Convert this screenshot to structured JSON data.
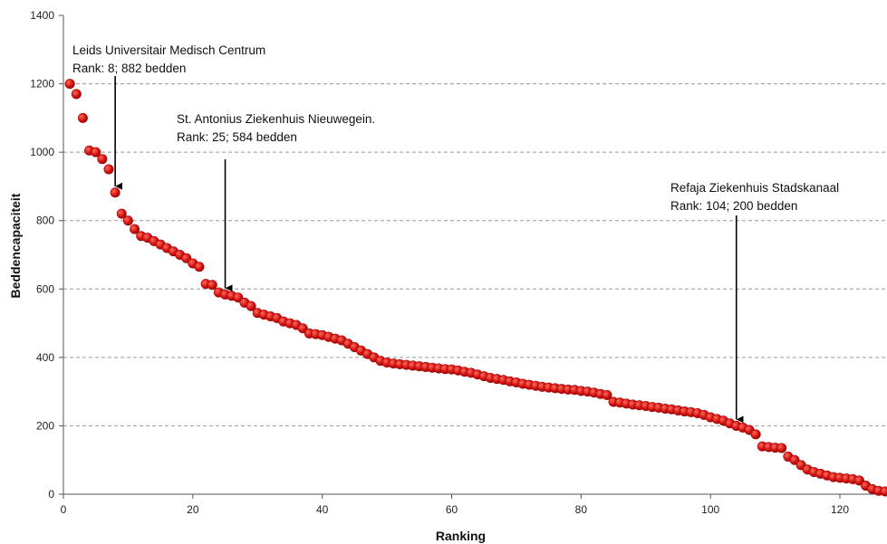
{
  "chart_data": {
    "type": "scatter",
    "xlabel": "Ranking",
    "ylabel": "Beddencapaciteit",
    "xlim": [
      0,
      127
    ],
    "ylim": [
      0,
      1400
    ],
    "x_ticks": [
      0,
      20,
      40,
      60,
      80,
      100,
      120
    ],
    "y_ticks": [
      0,
      200,
      400,
      600,
      800,
      1000,
      1200,
      1400
    ],
    "grid": "horizontal dashed",
    "marker_color": "#d41414",
    "series": [
      {
        "points": [
          [
            1,
            1200
          ],
          [
            2,
            1170
          ],
          [
            3,
            1100
          ],
          [
            4,
            1005
          ],
          [
            5,
            1000
          ],
          [
            6,
            980
          ],
          [
            7,
            950
          ],
          [
            8,
            882
          ],
          [
            9,
            820
          ],
          [
            10,
            800
          ],
          [
            11,
            775
          ],
          [
            12,
            755
          ],
          [
            13,
            750
          ],
          [
            14,
            740
          ],
          [
            15,
            730
          ],
          [
            16,
            720
          ],
          [
            17,
            710
          ],
          [
            18,
            700
          ],
          [
            19,
            690
          ],
          [
            20,
            675
          ],
          [
            21,
            665
          ],
          [
            22,
            615
          ],
          [
            23,
            612
          ],
          [
            24,
            590
          ],
          [
            25,
            584
          ],
          [
            26,
            580
          ],
          [
            27,
            575
          ],
          [
            28,
            560
          ],
          [
            29,
            550
          ],
          [
            30,
            530
          ],
          [
            31,
            525
          ],
          [
            32,
            520
          ],
          [
            33,
            515
          ],
          [
            34,
            505
          ],
          [
            35,
            500
          ],
          [
            36,
            495
          ],
          [
            37,
            485
          ],
          [
            38,
            470
          ],
          [
            39,
            468
          ],
          [
            40,
            465
          ],
          [
            41,
            460
          ],
          [
            42,
            455
          ],
          [
            43,
            450
          ],
          [
            44,
            440
          ],
          [
            45,
            430
          ],
          [
            46,
            420
          ],
          [
            47,
            410
          ],
          [
            48,
            400
          ],
          [
            49,
            390
          ],
          [
            50,
            385
          ],
          [
            51,
            382
          ],
          [
            52,
            380
          ],
          [
            53,
            378
          ],
          [
            54,
            376
          ],
          [
            55,
            374
          ],
          [
            56,
            372
          ],
          [
            57,
            370
          ],
          [
            58,
            368
          ],
          [
            59,
            366
          ],
          [
            60,
            365
          ],
          [
            61,
            362
          ],
          [
            62,
            358
          ],
          [
            63,
            355
          ],
          [
            64,
            350
          ],
          [
            65,
            345
          ],
          [
            66,
            340
          ],
          [
            67,
            337
          ],
          [
            68,
            334
          ],
          [
            69,
            330
          ],
          [
            70,
            327
          ],
          [
            71,
            323
          ],
          [
            72,
            320
          ],
          [
            73,
            317
          ],
          [
            74,
            314
          ],
          [
            75,
            312
          ],
          [
            76,
            310
          ],
          [
            77,
            308
          ],
          [
            78,
            306
          ],
          [
            79,
            305
          ],
          [
            80,
            302
          ],
          [
            81,
            300
          ],
          [
            82,
            297
          ],
          [
            83,
            293
          ],
          [
            84,
            290
          ],
          [
            85,
            270
          ],
          [
            86,
            268
          ],
          [
            87,
            265
          ],
          [
            88,
            262
          ],
          [
            89,
            260
          ],
          [
            90,
            258
          ],
          [
            91,
            255
          ],
          [
            92,
            253
          ],
          [
            93,
            250
          ],
          [
            94,
            248
          ],
          [
            95,
            245
          ],
          [
            96,
            242
          ],
          [
            97,
            240
          ],
          [
            98,
            237
          ],
          [
            99,
            232
          ],
          [
            100,
            225
          ],
          [
            101,
            220
          ],
          [
            102,
            215
          ],
          [
            103,
            207
          ],
          [
            104,
            200
          ],
          [
            105,
            195
          ],
          [
            106,
            188
          ],
          [
            107,
            175
          ],
          [
            108,
            140
          ],
          [
            109,
            138
          ],
          [
            110,
            136
          ],
          [
            111,
            135
          ],
          [
            112,
            110
          ],
          [
            113,
            100
          ],
          [
            114,
            85
          ],
          [
            115,
            72
          ],
          [
            116,
            65
          ],
          [
            117,
            60
          ],
          [
            118,
            55
          ],
          [
            119,
            50
          ],
          [
            120,
            48
          ],
          [
            121,
            46
          ],
          [
            122,
            44
          ],
          [
            123,
            40
          ],
          [
            124,
            25
          ],
          [
            125,
            15
          ],
          [
            126,
            10
          ],
          [
            127,
            8
          ]
        ]
      }
    ],
    "annotations": [
      {
        "lines": [
          "Leids Universitair Medisch Centrum",
          "Rank: 8; 882 bedden"
        ],
        "rank": 8,
        "value": 882
      },
      {
        "lines": [
          "St. Antonius Ziekenhuis Nieuwegein.",
          "Rank: 25; 584 bedden"
        ],
        "rank": 25,
        "value": 584
      },
      {
        "lines": [
          "Refaja Ziekenhuis Stadskanaal",
          "Rank: 104; 200 bedden"
        ],
        "rank": 104,
        "value": 200
      }
    ]
  }
}
